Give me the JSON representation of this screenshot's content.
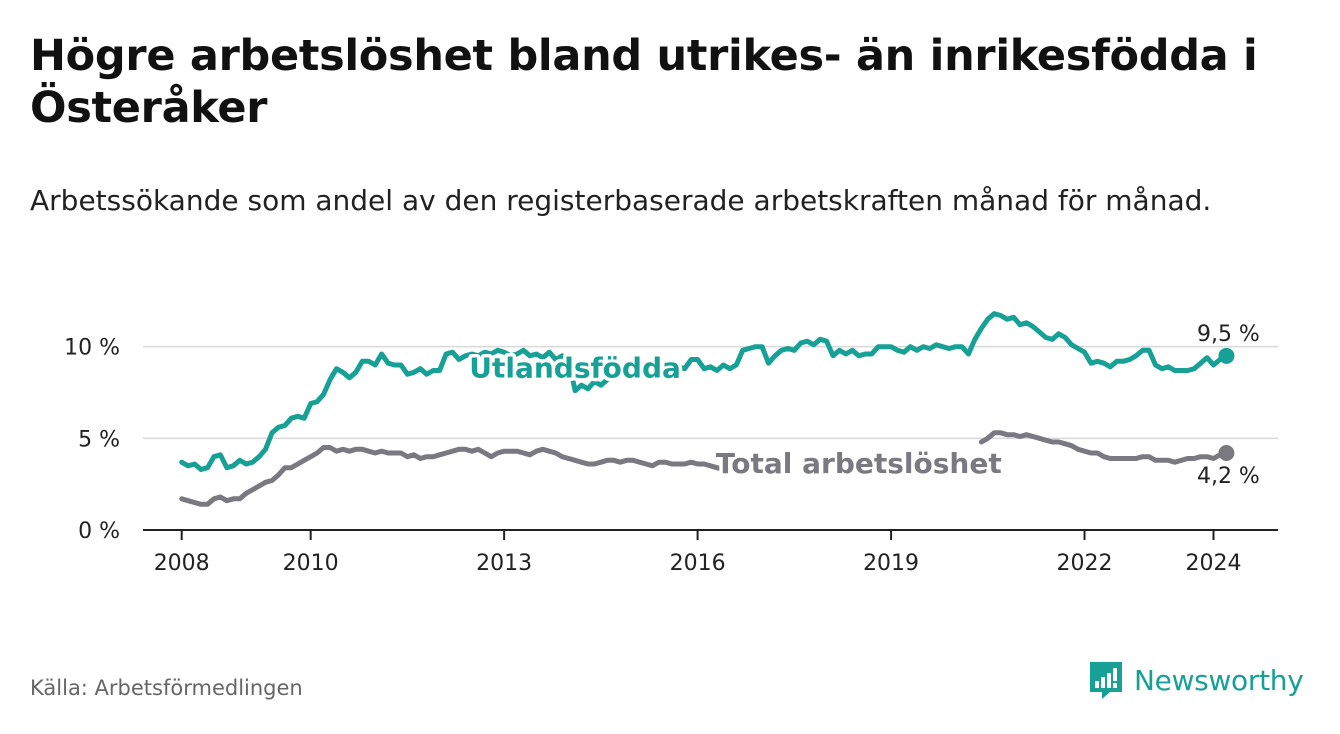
{
  "title": "Högre arbetslöshet bland utrikes- än inrikesfödda i Österåker",
  "subtitle": "Arbetssökande som andel av den registerbaserade arbetskraften månad för månad.",
  "source": "Källa: Arbetsförmedlingen",
  "brand": "Newsworthy",
  "colors": {
    "foreign": "#17a096",
    "total": "#7a7880",
    "grid": "#d9d9d9",
    "axis": "#222222",
    "brand": "#17a096"
  },
  "chart_data": {
    "type": "line",
    "ylim": [
      0,
      12
    ],
    "xlim": [
      2007.4,
      2025.0
    ],
    "y_ticks": [
      {
        "value": 0,
        "label": "0 %"
      },
      {
        "value": 5,
        "label": "5 %"
      },
      {
        "value": 10,
        "label": "10 %"
      }
    ],
    "x_ticks": [
      {
        "value": 2008,
        "label": "2008"
      },
      {
        "value": 2010,
        "label": "2010"
      },
      {
        "value": 2013,
        "label": "2013"
      },
      {
        "value": 2016,
        "label": "2016"
      },
      {
        "value": 2019,
        "label": "2019"
      },
      {
        "value": 2022,
        "label": "2022"
      },
      {
        "value": 2024,
        "label": "2024"
      }
    ],
    "series": [
      {
        "name": "Utlandsfödda",
        "key": "foreign",
        "label_at": 2014.1,
        "label_value": 8.8,
        "end_label": "9,5 %",
        "points": [
          [
            2008.0,
            3.7
          ],
          [
            2008.1,
            3.5
          ],
          [
            2008.2,
            3.6
          ],
          [
            2008.3,
            3.3
          ],
          [
            2008.4,
            3.4
          ],
          [
            2008.5,
            4.0
          ],
          [
            2008.6,
            4.1
          ],
          [
            2008.7,
            3.4
          ],
          [
            2008.8,
            3.5
          ],
          [
            2008.9,
            3.8
          ],
          [
            2009.0,
            3.6
          ],
          [
            2009.1,
            3.7
          ],
          [
            2009.2,
            4.0
          ],
          [
            2009.3,
            4.4
          ],
          [
            2009.4,
            5.3
          ],
          [
            2009.5,
            5.6
          ],
          [
            2009.6,
            5.7
          ],
          [
            2009.7,
            6.1
          ],
          [
            2009.8,
            6.2
          ],
          [
            2009.9,
            6.1
          ],
          [
            2010.0,
            6.9
          ],
          [
            2010.1,
            7.0
          ],
          [
            2010.2,
            7.4
          ],
          [
            2010.3,
            8.2
          ],
          [
            2010.4,
            8.8
          ],
          [
            2010.5,
            8.6
          ],
          [
            2010.6,
            8.3
          ],
          [
            2010.7,
            8.6
          ],
          [
            2010.8,
            9.2
          ],
          [
            2010.9,
            9.2
          ],
          [
            2011.0,
            9.0
          ],
          [
            2011.1,
            9.6
          ],
          [
            2011.2,
            9.1
          ],
          [
            2011.3,
            9.0
          ],
          [
            2011.4,
            9.0
          ],
          [
            2011.5,
            8.5
          ],
          [
            2011.6,
            8.6
          ],
          [
            2011.7,
            8.8
          ],
          [
            2011.8,
            8.5
          ],
          [
            2011.9,
            8.7
          ],
          [
            2012.0,
            8.7
          ],
          [
            2012.1,
            9.6
          ],
          [
            2012.2,
            9.7
          ],
          [
            2012.3,
            9.3
          ],
          [
            2012.4,
            9.5
          ],
          [
            2012.5,
            9.6
          ],
          [
            2012.6,
            9.5
          ],
          [
            2012.7,
            9.7
          ],
          [
            2012.8,
            9.6
          ],
          [
            2012.9,
            9.8
          ],
          [
            2013.0,
            9.7
          ],
          [
            2013.1,
            9.5
          ],
          [
            2013.2,
            9.6
          ],
          [
            2013.3,
            9.8
          ],
          [
            2013.4,
            9.5
          ],
          [
            2013.5,
            9.6
          ],
          [
            2013.6,
            9.4
          ],
          [
            2013.7,
            9.7
          ],
          [
            2013.8,
            9.3
          ],
          [
            2013.9,
            9.5
          ],
          [
            2014.0,
            9.3
          ],
          [
            2014.1,
            7.6
          ],
          [
            2014.2,
            7.9
          ],
          [
            2014.3,
            7.7
          ],
          [
            2014.4,
            8.1
          ],
          [
            2014.5,
            7.9
          ],
          [
            2014.6,
            8.2
          ],
          [
            2014.7,
            8.5
          ],
          [
            2014.8,
            8.7
          ],
          [
            2014.9,
            8.6
          ],
          [
            2015.0,
            8.8
          ],
          [
            2015.1,
            8.9
          ],
          [
            2015.2,
            8.6
          ],
          [
            2015.3,
            8.4
          ],
          [
            2015.4,
            8.3
          ],
          [
            2015.5,
            8.8
          ],
          [
            2015.6,
            8.7
          ],
          [
            2015.7,
            8.9
          ],
          [
            2015.8,
            8.8
          ],
          [
            2015.9,
            9.3
          ],
          [
            2016.0,
            9.3
          ],
          [
            2016.1,
            8.8
          ],
          [
            2016.2,
            8.9
          ],
          [
            2016.3,
            8.7
          ],
          [
            2016.4,
            9.0
          ],
          [
            2016.5,
            8.8
          ],
          [
            2016.6,
            9.0
          ],
          [
            2016.7,
            9.8
          ],
          [
            2016.8,
            9.9
          ],
          [
            2016.9,
            10.0
          ],
          [
            2017.0,
            10.0
          ],
          [
            2017.1,
            9.1
          ],
          [
            2017.2,
            9.5
          ],
          [
            2017.3,
            9.8
          ],
          [
            2017.4,
            9.9
          ],
          [
            2017.5,
            9.8
          ],
          [
            2017.6,
            10.2
          ],
          [
            2017.7,
            10.3
          ],
          [
            2017.8,
            10.1
          ],
          [
            2017.9,
            10.4
          ],
          [
            2018.0,
            10.3
          ],
          [
            2018.1,
            9.5
          ],
          [
            2018.2,
            9.8
          ],
          [
            2018.3,
            9.6
          ],
          [
            2018.4,
            9.8
          ],
          [
            2018.5,
            9.5
          ],
          [
            2018.6,
            9.6
          ],
          [
            2018.7,
            9.6
          ],
          [
            2018.8,
            10.0
          ],
          [
            2018.9,
            10.0
          ],
          [
            2019.0,
            10.0
          ],
          [
            2019.1,
            9.8
          ],
          [
            2019.2,
            9.7
          ],
          [
            2019.3,
            10.0
          ],
          [
            2019.4,
            9.8
          ],
          [
            2019.5,
            10.0
          ],
          [
            2019.6,
            9.9
          ],
          [
            2019.7,
            10.1
          ],
          [
            2019.8,
            10.0
          ],
          [
            2019.9,
            9.9
          ],
          [
            2020.0,
            10.0
          ],
          [
            2020.1,
            10.0
          ],
          [
            2020.2,
            9.6
          ],
          [
            2020.3,
            10.4
          ],
          [
            2020.4,
            11.0
          ],
          [
            2020.5,
            11.5
          ],
          [
            2020.6,
            11.8
          ],
          [
            2020.7,
            11.7
          ],
          [
            2020.8,
            11.5
          ],
          [
            2020.9,
            11.6
          ],
          [
            2021.0,
            11.2
          ],
          [
            2021.1,
            11.3
          ],
          [
            2021.2,
            11.1
          ],
          [
            2021.3,
            10.8
          ],
          [
            2021.4,
            10.5
          ],
          [
            2021.5,
            10.4
          ],
          [
            2021.6,
            10.7
          ],
          [
            2021.7,
            10.5
          ],
          [
            2021.8,
            10.1
          ],
          [
            2021.9,
            9.9
          ],
          [
            2022.0,
            9.7
          ],
          [
            2022.1,
            9.1
          ],
          [
            2022.2,
            9.2
          ],
          [
            2022.3,
            9.1
          ],
          [
            2022.4,
            8.9
          ],
          [
            2022.5,
            9.2
          ],
          [
            2022.6,
            9.2
          ],
          [
            2022.7,
            9.3
          ],
          [
            2022.8,
            9.5
          ],
          [
            2022.9,
            9.8
          ],
          [
            2023.0,
            9.8
          ],
          [
            2023.1,
            9.0
          ],
          [
            2023.2,
            8.8
          ],
          [
            2023.3,
            8.9
          ],
          [
            2023.4,
            8.7
          ],
          [
            2023.5,
            8.7
          ],
          [
            2023.6,
            8.7
          ],
          [
            2023.7,
            8.8
          ],
          [
            2023.8,
            9.1
          ],
          [
            2023.9,
            9.4
          ],
          [
            2024.0,
            9.0
          ],
          [
            2024.1,
            9.3
          ],
          [
            2024.2,
            9.5
          ]
        ]
      },
      {
        "name": "Total arbetslöshet",
        "key": "total",
        "label_at": 2018.5,
        "label_value": 3.6,
        "end_label": "4,2 %",
        "points": [
          [
            2008.0,
            1.7
          ],
          [
            2008.1,
            1.6
          ],
          [
            2008.2,
            1.5
          ],
          [
            2008.3,
            1.4
          ],
          [
            2008.4,
            1.4
          ],
          [
            2008.5,
            1.7
          ],
          [
            2008.6,
            1.8
          ],
          [
            2008.7,
            1.6
          ],
          [
            2008.8,
            1.7
          ],
          [
            2008.9,
            1.7
          ],
          [
            2009.0,
            2.0
          ],
          [
            2009.1,
            2.2
          ],
          [
            2009.2,
            2.4
          ],
          [
            2009.3,
            2.6
          ],
          [
            2009.4,
            2.7
          ],
          [
            2009.5,
            3.0
          ],
          [
            2009.6,
            3.4
          ],
          [
            2009.7,
            3.4
          ],
          [
            2009.8,
            3.6
          ],
          [
            2009.9,
            3.8
          ],
          [
            2010.0,
            4.0
          ],
          [
            2010.1,
            4.2
          ],
          [
            2010.2,
            4.5
          ],
          [
            2010.3,
            4.5
          ],
          [
            2010.4,
            4.3
          ],
          [
            2010.5,
            4.4
          ],
          [
            2010.6,
            4.3
          ],
          [
            2010.7,
            4.4
          ],
          [
            2010.8,
            4.4
          ],
          [
            2010.9,
            4.3
          ],
          [
            2011.0,
            4.2
          ],
          [
            2011.1,
            4.3
          ],
          [
            2011.2,
            4.2
          ],
          [
            2011.3,
            4.2
          ],
          [
            2011.4,
            4.2
          ],
          [
            2011.5,
            4.0
          ],
          [
            2011.6,
            4.1
          ],
          [
            2011.7,
            3.9
          ],
          [
            2011.8,
            4.0
          ],
          [
            2011.9,
            4.0
          ],
          [
            2012.0,
            4.1
          ],
          [
            2012.1,
            4.2
          ],
          [
            2012.2,
            4.3
          ],
          [
            2012.3,
            4.4
          ],
          [
            2012.4,
            4.4
          ],
          [
            2012.5,
            4.3
          ],
          [
            2012.6,
            4.4
          ],
          [
            2012.7,
            4.2
          ],
          [
            2012.8,
            4.0
          ],
          [
            2012.9,
            4.2
          ],
          [
            2013.0,
            4.3
          ],
          [
            2013.1,
            4.3
          ],
          [
            2013.2,
            4.3
          ],
          [
            2013.3,
            4.2
          ],
          [
            2013.4,
            4.1
          ],
          [
            2013.5,
            4.3
          ],
          [
            2013.6,
            4.4
          ],
          [
            2013.7,
            4.3
          ],
          [
            2013.8,
            4.2
          ],
          [
            2013.9,
            4.0
          ],
          [
            2014.0,
            3.9
          ],
          [
            2014.1,
            3.8
          ],
          [
            2014.2,
            3.7
          ],
          [
            2014.3,
            3.6
          ],
          [
            2014.4,
            3.6
          ],
          [
            2014.5,
            3.7
          ],
          [
            2014.6,
            3.8
          ],
          [
            2014.7,
            3.8
          ],
          [
            2014.8,
            3.7
          ],
          [
            2014.9,
            3.8
          ],
          [
            2015.0,
            3.8
          ],
          [
            2015.1,
            3.7
          ],
          [
            2015.2,
            3.6
          ],
          [
            2015.3,
            3.5
          ],
          [
            2015.4,
            3.7
          ],
          [
            2015.5,
            3.7
          ],
          [
            2015.6,
            3.6
          ],
          [
            2015.7,
            3.6
          ],
          [
            2015.8,
            3.6
          ],
          [
            2015.9,
            3.7
          ],
          [
            2016.0,
            3.6
          ],
          [
            2016.1,
            3.6
          ],
          [
            2016.2,
            3.5
          ],
          [
            2016.3,
            3.4
          ],
          [
            2016.4,
            3.3
          ],
          [
            2016.5,
            3.3
          ],
          [
            2016.6,
            3.4
          ],
          null,
          [
            2020.4,
            4.8
          ],
          [
            2020.5,
            5.0
          ],
          [
            2020.6,
            5.3
          ],
          [
            2020.7,
            5.3
          ],
          [
            2020.8,
            5.2
          ],
          [
            2020.9,
            5.2
          ],
          [
            2021.0,
            5.1
          ],
          [
            2021.1,
            5.2
          ],
          [
            2021.2,
            5.1
          ],
          [
            2021.3,
            5.0
          ],
          [
            2021.4,
            4.9
          ],
          [
            2021.5,
            4.8
          ],
          [
            2021.6,
            4.8
          ],
          [
            2021.7,
            4.7
          ],
          [
            2021.8,
            4.6
          ],
          [
            2021.9,
            4.4
          ],
          [
            2022.0,
            4.3
          ],
          [
            2022.1,
            4.2
          ],
          [
            2022.2,
            4.2
          ],
          [
            2022.3,
            4.0
          ],
          [
            2022.4,
            3.9
          ],
          [
            2022.5,
            3.9
          ],
          [
            2022.6,
            3.9
          ],
          [
            2022.7,
            3.9
          ],
          [
            2022.8,
            3.9
          ],
          [
            2022.9,
            4.0
          ],
          [
            2023.0,
            4.0
          ],
          [
            2023.1,
            3.8
          ],
          [
            2023.2,
            3.8
          ],
          [
            2023.3,
            3.8
          ],
          [
            2023.4,
            3.7
          ],
          [
            2023.5,
            3.8
          ],
          [
            2023.6,
            3.9
          ],
          [
            2023.7,
            3.9
          ],
          [
            2023.8,
            4.0
          ],
          [
            2023.9,
            4.0
          ],
          [
            2024.0,
            3.9
          ],
          [
            2024.1,
            4.1
          ],
          [
            2024.2,
            4.2
          ]
        ]
      }
    ]
  }
}
